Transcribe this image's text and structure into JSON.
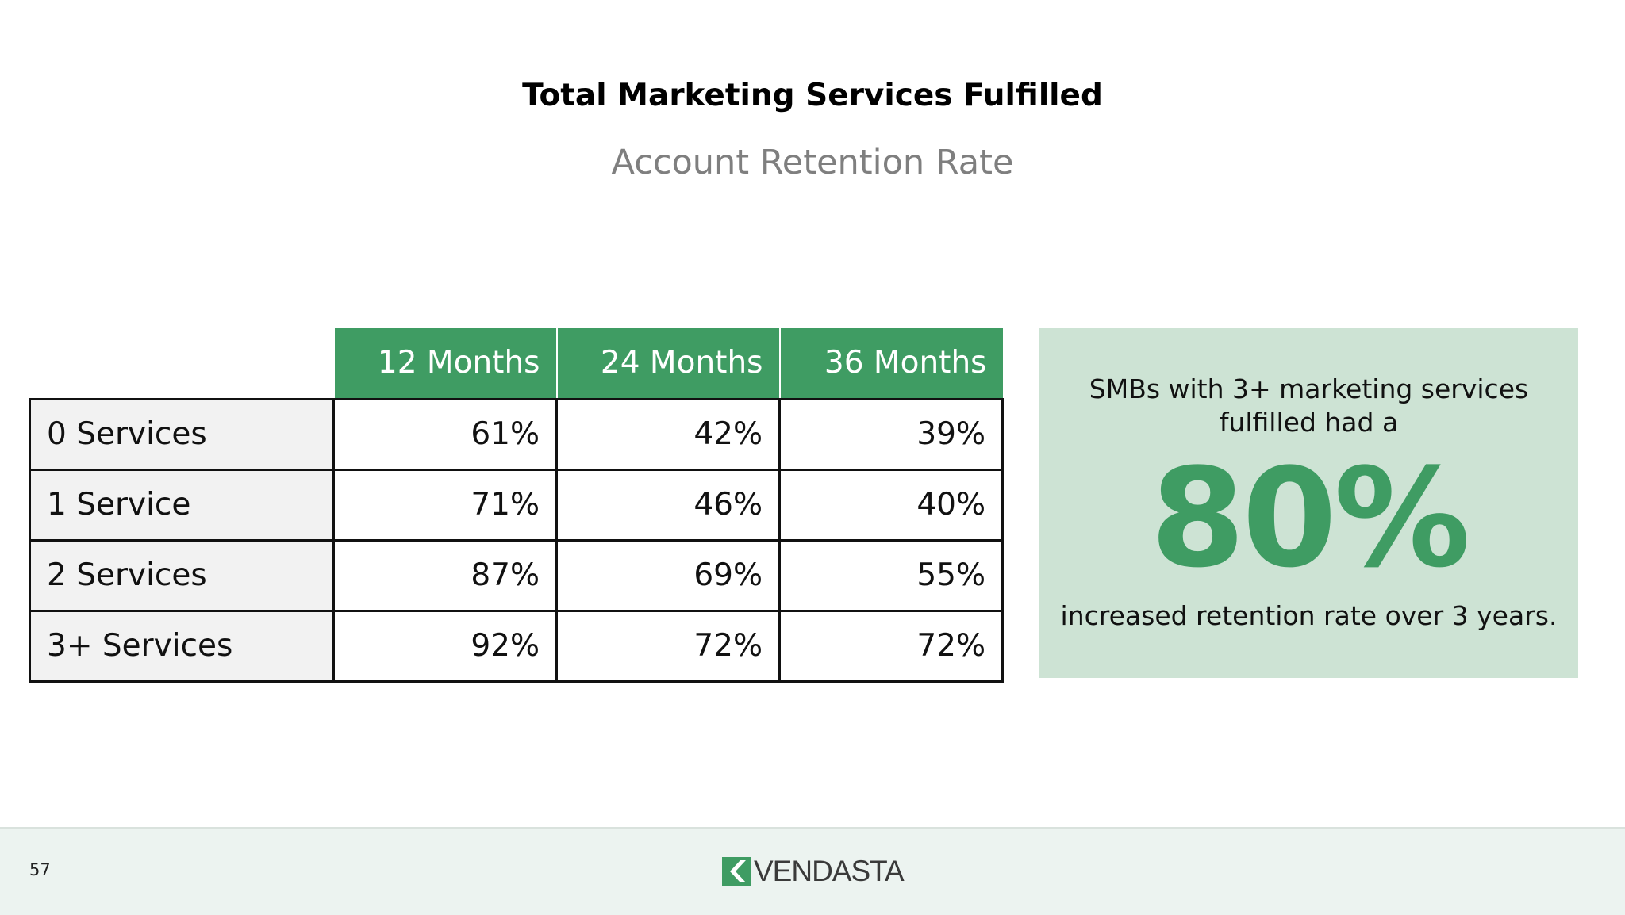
{
  "title": "Total Marketing Services Fulfilled",
  "subtitle": "Account Retention Rate",
  "table": {
    "columns": [
      "12 Months",
      "24 Months",
      "36 Months"
    ],
    "rows": [
      {
        "label": "0 Services",
        "values": [
          "61%",
          "42%",
          "39%"
        ]
      },
      {
        "label": "1 Service",
        "values": [
          "71%",
          "46%",
          "40%"
        ]
      },
      {
        "label": "2 Services",
        "values": [
          "87%",
          "69%",
          "55%"
        ]
      },
      {
        "label": "3+ Services",
        "values": [
          "92%",
          "72%",
          "72%"
        ]
      }
    ]
  },
  "callout": {
    "lead": "SMBs with 3+ marketing services fulfilled had a",
    "value": "80%",
    "trail": "increased retention rate over 3 years."
  },
  "footer": {
    "page_number": "57",
    "logo_text": "VENDASTA"
  },
  "colors": {
    "accent_green": "#3f9c63",
    "callout_bg": "#cde3d4",
    "footer_bg": "#ecf3f0",
    "subtitle_gray": "#7f7f7f"
  }
}
